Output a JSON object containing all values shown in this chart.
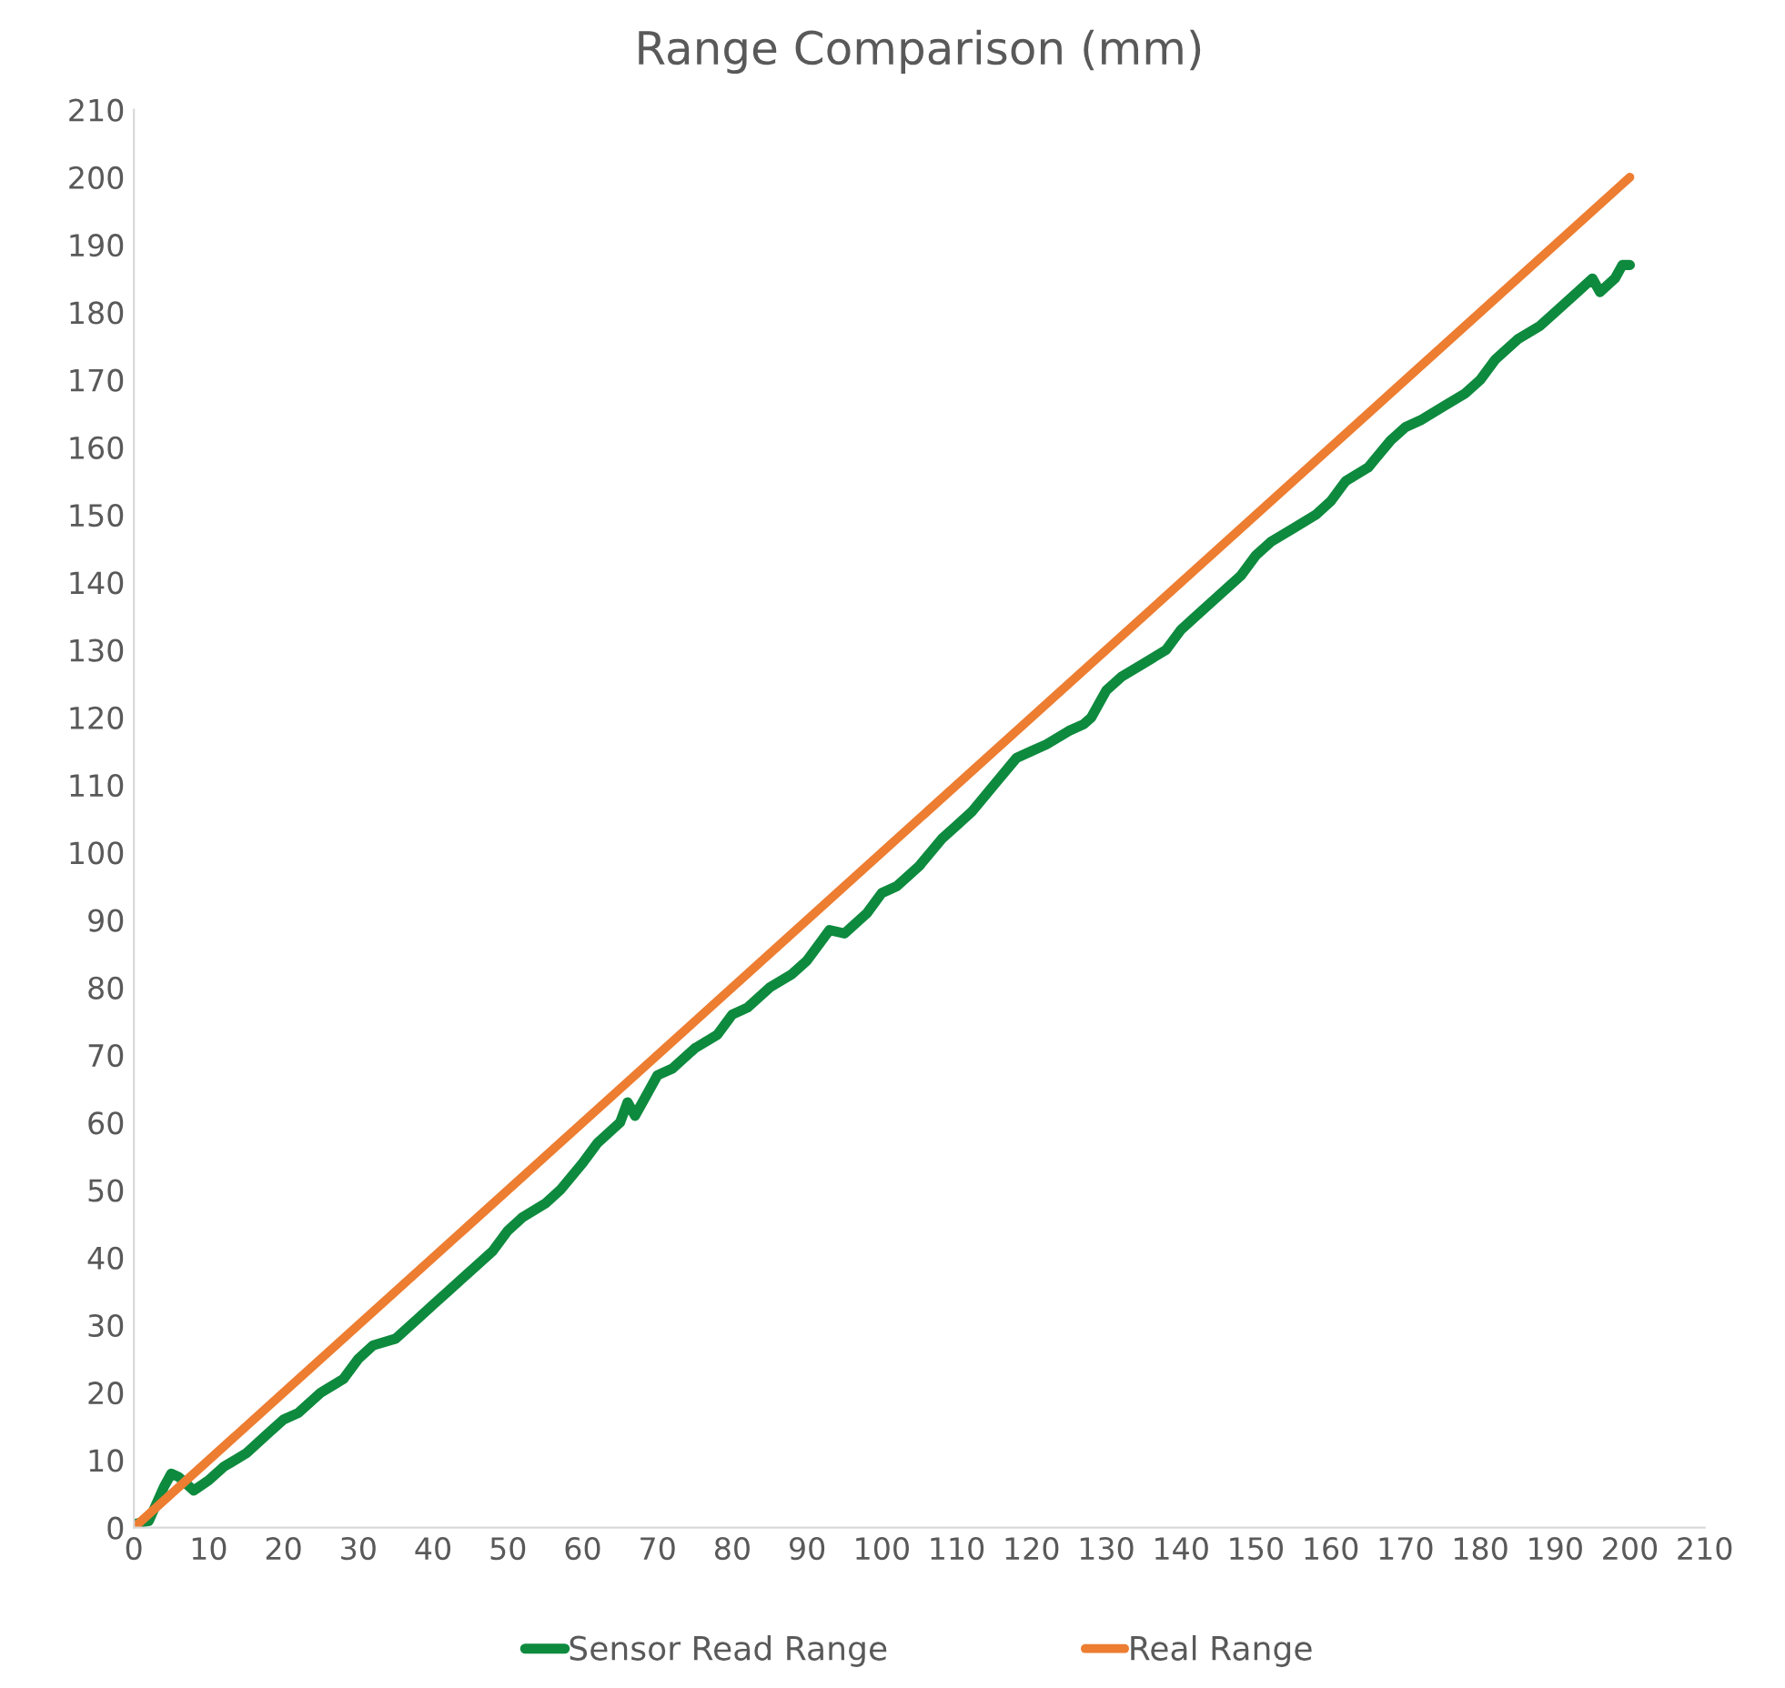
{
  "chart_data": {
    "type": "line",
    "title": "Range Comparison (mm)",
    "series": [
      {
        "name": "Sensor Read Range",
        "color": "#0e8a3e",
        "x": [
          0,
          2,
          4,
          5,
          6,
          8,
          10,
          12,
          15,
          18,
          20,
          22,
          25,
          28,
          30,
          32,
          35,
          38,
          40,
          42,
          45,
          48,
          50,
          52,
          55,
          57,
          60,
          62,
          65,
          66,
          67,
          68,
          70,
          72,
          75,
          78,
          80,
          82,
          85,
          88,
          90,
          92,
          93,
          95,
          98,
          100,
          102,
          105,
          108,
          110,
          112,
          115,
          118,
          120,
          122,
          125,
          127,
          128,
          130,
          132,
          135,
          138,
          140,
          142,
          145,
          148,
          150,
          152,
          155,
          158,
          160,
          162,
          165,
          168,
          170,
          172,
          175,
          178,
          180,
          182,
          185,
          188,
          190,
          193,
          195,
          196,
          198,
          199,
          200
        ],
        "values": [
          0.5,
          1,
          6,
          8,
          7.5,
          5.5,
          7,
          9,
          11,
          14,
          16,
          17,
          20,
          22,
          25,
          27,
          28,
          31,
          33,
          35,
          38,
          41,
          44,
          46,
          48,
          50,
          54,
          57,
          60,
          63,
          61,
          63,
          67,
          68,
          71,
          73,
          76,
          77,
          80,
          82,
          84,
          87,
          88.5,
          88,
          91,
          94,
          95,
          98,
          102,
          104,
          106,
          110,
          114,
          115,
          116,
          118,
          119,
          120,
          124,
          126,
          128,
          130,
          133,
          135,
          138,
          141,
          144,
          146,
          148,
          150,
          152,
          155,
          157,
          161,
          163,
          164,
          166,
          168,
          170,
          173,
          176,
          178,
          180,
          183,
          185,
          183,
          185,
          187,
          187
        ]
      },
      {
        "name": "Real Range",
        "color": "#ed7d31",
        "x": [
          0,
          200
        ],
        "values": [
          0,
          200
        ]
      }
    ],
    "xlim": [
      0,
      210
    ],
    "xticks": [
      0,
      10,
      20,
      30,
      40,
      50,
      60,
      70,
      80,
      90,
      100,
      110,
      120,
      130,
      140,
      150,
      160,
      170,
      180,
      190,
      200,
      210
    ],
    "ylim": [
      0,
      210
    ],
    "yticks": [
      0,
      10,
      20,
      30,
      40,
      50,
      60,
      70,
      80,
      90,
      100,
      110,
      120,
      130,
      140,
      150,
      160,
      170,
      180,
      190,
      200,
      210
    ],
    "legend": "bottom"
  }
}
